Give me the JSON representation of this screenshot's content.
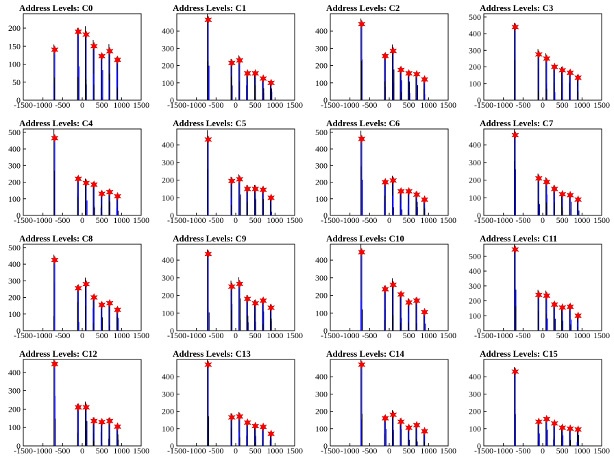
{
  "chart_data": [
    {
      "type": "bar",
      "title": "Address Levels: C0",
      "xticks": [
        "-1500",
        "-1000",
        "-500",
        "0",
        "500",
        "1000",
        "1500"
      ],
      "xlim": [
        -1500,
        1500
      ],
      "ylim": [
        0,
        240
      ],
      "yticks": [
        "0",
        "50",
        "100",
        "150",
        "200"
      ],
      "star_positions": [
        -700,
        -100,
        100,
        300,
        500,
        700,
        900
      ],
      "star_values": [
        140,
        190,
        182,
        150,
        122,
        136,
        112
      ],
      "colors": {
        "black": "#000000",
        "blue": "#0000ff",
        "star": "#ff0000"
      }
    },
    {
      "type": "bar",
      "title": "Address Levels: C1",
      "xticks": [
        "-1500",
        "-1000",
        "-500",
        "0",
        "500",
        "1000",
        "1500"
      ],
      "xlim": [
        -1500,
        1500
      ],
      "ylim": [
        0,
        500
      ],
      "yticks": [
        "0",
        "100",
        "200",
        "300",
        "400"
      ],
      "star_positions": [
        -700,
        -100,
        100,
        300,
        500,
        700,
        900
      ],
      "star_values": [
        465,
        215,
        230,
        155,
        155,
        125,
        100
      ]
    },
    {
      "type": "bar",
      "title": "Address Levels: C2",
      "xticks": [
        "-1500",
        "-1000",
        "-500",
        "0",
        "500",
        "1000",
        "1500"
      ],
      "xlim": [
        -1500,
        1500
      ],
      "ylim": [
        0,
        500
      ],
      "yticks": [
        "0",
        "100",
        "200",
        "300",
        "400"
      ],
      "star_positions": [
        -700,
        -100,
        100,
        300,
        500,
        700,
        900
      ],
      "star_values": [
        440,
        255,
        285,
        175,
        155,
        150,
        120
      ]
    },
    {
      "type": "bar",
      "title": "Address Levels: C3",
      "xticks": [
        "-1500",
        "-1000",
        "-500",
        "0",
        "500",
        "1000",
        "1500"
      ],
      "xlim": [
        -1500,
        1500
      ],
      "ylim": [
        0,
        520
      ],
      "yticks": [
        "0",
        "100",
        "200",
        "300",
        "400",
        "500"
      ],
      "star_positions": [
        -700,
        -100,
        100,
        300,
        500,
        700,
        900
      ],
      "star_values": [
        440,
        275,
        250,
        200,
        180,
        165,
        135
      ]
    },
    {
      "type": "bar",
      "title": "Address Levels: C4",
      "xticks": [
        "-1500",
        "-1000",
        "-500",
        "0",
        "500",
        "1000",
        "1500"
      ],
      "xlim": [
        -1500,
        1500
      ],
      "ylim": [
        0,
        520
      ],
      "yticks": [
        "0",
        "100",
        "200",
        "300",
        "400",
        "500"
      ],
      "star_positions": [
        -700,
        -100,
        100,
        300,
        500,
        700,
        900
      ],
      "star_values": [
        465,
        220,
        195,
        185,
        130,
        140,
        115
      ]
    },
    {
      "type": "bar",
      "title": "Address Levels: C5",
      "xticks": [
        "-1500",
        "-1000",
        "-500",
        "0",
        "500",
        "1000",
        "1500"
      ],
      "xlim": [
        -1500,
        1500
      ],
      "ylim": [
        0,
        490
      ],
      "yticks": [
        "0",
        "100",
        "200",
        "300",
        "400"
      ],
      "star_positions": [
        -700,
        -100,
        100,
        300,
        500,
        700,
        900
      ],
      "star_values": [
        430,
        195,
        205,
        150,
        150,
        145,
        100
      ]
    },
    {
      "type": "bar",
      "title": "Address Levels: C6",
      "xticks": [
        "-1500",
        "-1000",
        "-500",
        "0",
        "500",
        "1000",
        "1500"
      ],
      "xlim": [
        -1500,
        1500
      ],
      "ylim": [
        0,
        520
      ],
      "yticks": [
        "0",
        "100",
        "200",
        "300",
        "400",
        "500"
      ],
      "star_positions": [
        -700,
        -100,
        100,
        300,
        500,
        700,
        900
      ],
      "star_values": [
        460,
        200,
        210,
        145,
        145,
        125,
        95
      ]
    },
    {
      "type": "bar",
      "title": "Address Levels: C7",
      "xticks": [
        "-1500",
        "-1000",
        "-500",
        "0",
        "500",
        "1000",
        "1500"
      ],
      "xlim": [
        -1500,
        1500
      ],
      "ylim": [
        0,
        490
      ],
      "yticks": [
        "0",
        "100",
        "200",
        "300",
        "400"
      ],
      "star_positions": [
        -700,
        -100,
        100,
        300,
        500,
        700,
        900
      ],
      "star_values": [
        455,
        210,
        190,
        150,
        120,
        115,
        90
      ]
    },
    {
      "type": "bar",
      "title": "Address Levels: C8",
      "xticks": [
        "-1500",
        "-1000",
        "-500",
        "0",
        "500",
        "1000",
        "1500"
      ],
      "xlim": [
        -1500,
        1500
      ],
      "ylim": [
        0,
        520
      ],
      "yticks": [
        "0",
        "100",
        "200",
        "300",
        "400",
        "500"
      ],
      "star_positions": [
        -700,
        -100,
        100,
        300,
        500,
        700,
        900
      ],
      "star_values": [
        425,
        255,
        280,
        200,
        155,
        165,
        125
      ]
    },
    {
      "type": "bar",
      "title": "Address Levels: C9",
      "xticks": [
        "-1500",
        "-1000",
        "-500",
        "0",
        "500",
        "1000",
        "1500"
      ],
      "xlim": [
        -1500,
        1500
      ],
      "ylim": [
        0,
        490
      ],
      "yticks": [
        "0",
        "100",
        "200",
        "300",
        "400"
      ],
      "star_positions": [
        -700,
        -100,
        100,
        300,
        500,
        700,
        900
      ],
      "star_values": [
        435,
        250,
        265,
        180,
        155,
        170,
        130
      ]
    },
    {
      "type": "bar",
      "title": "Address Levels: C10",
      "xticks": [
        "-1500",
        "-1000",
        "-500",
        "0",
        "500",
        "1000",
        "1500"
      ],
      "xlim": [
        -1500,
        1500
      ],
      "ylim": [
        0,
        490
      ],
      "yticks": [
        "0",
        "100",
        "200",
        "300",
        "400"
      ],
      "star_positions": [
        -700,
        -100,
        100,
        300,
        500,
        700,
        900
      ],
      "star_values": [
        445,
        235,
        260,
        205,
        160,
        170,
        105
      ]
    },
    {
      "type": "bar",
      "title": "Address Levels: C11",
      "xticks": [
        "-1500",
        "-1000",
        "-500",
        "0",
        "500",
        "1000",
        "1500"
      ],
      "xlim": [
        -1500,
        1500
      ],
      "ylim": [
        0,
        580
      ],
      "yticks": [
        "0",
        "100",
        "200",
        "300",
        "400",
        "500"
      ],
      "star_positions": [
        -700,
        -100,
        100,
        300,
        500,
        700,
        900
      ],
      "star_values": [
        545,
        240,
        235,
        175,
        155,
        160,
        100
      ]
    },
    {
      "type": "bar",
      "title": "Address Levels: C12",
      "xticks": [
        "-1500",
        "-1000",
        "-500",
        "0",
        "500",
        "1000",
        "1500"
      ],
      "xlim": [
        -1500,
        1500
      ],
      "ylim": [
        0,
        470
      ],
      "yticks": [
        "0",
        "100",
        "200",
        "300",
        "400"
      ],
      "star_positions": [
        -700,
        -100,
        100,
        300,
        500,
        700,
        900
      ],
      "star_values": [
        445,
        210,
        210,
        135,
        130,
        135,
        105
      ]
    },
    {
      "type": "bar",
      "title": "Address Levels: C13",
      "xticks": [
        "-1500",
        "-1000",
        "-500",
        "0",
        "500",
        "1000",
        "1500"
      ],
      "xlim": [
        -1500,
        1500
      ],
      "ylim": [
        0,
        500
      ],
      "yticks": [
        "0",
        "100",
        "200",
        "300",
        "400"
      ],
      "star_positions": [
        -700,
        -100,
        100,
        300,
        500,
        700,
        900
      ],
      "star_values": [
        470,
        165,
        170,
        135,
        115,
        110,
        70
      ]
    },
    {
      "type": "bar",
      "title": "Address Levels: C14",
      "xticks": [
        "-1500",
        "-1000",
        "-500",
        "0",
        "500",
        "1000",
        "1500"
      ],
      "xlim": [
        -1500,
        1500
      ],
      "ylim": [
        0,
        500
      ],
      "yticks": [
        "0",
        "100",
        "200",
        "300",
        "400"
      ],
      "star_positions": [
        -700,
        -100,
        100,
        300,
        500,
        700,
        900
      ],
      "star_values": [
        470,
        160,
        180,
        140,
        105,
        120,
        85
      ]
    },
    {
      "type": "bar",
      "title": "Address Levels: C15",
      "xticks": [
        "-1500",
        "-1000",
        "-500",
        "0",
        "500",
        "1000",
        "1500"
      ],
      "xlim": [
        -1500,
        1500
      ],
      "ylim": [
        0,
        500
      ],
      "yticks": [
        "0",
        "100",
        "200",
        "300",
        "400"
      ],
      "star_positions": [
        -700,
        -100,
        100,
        300,
        500,
        700,
        900
      ],
      "star_values": [
        430,
        140,
        155,
        130,
        105,
        100,
        95
      ]
    }
  ]
}
